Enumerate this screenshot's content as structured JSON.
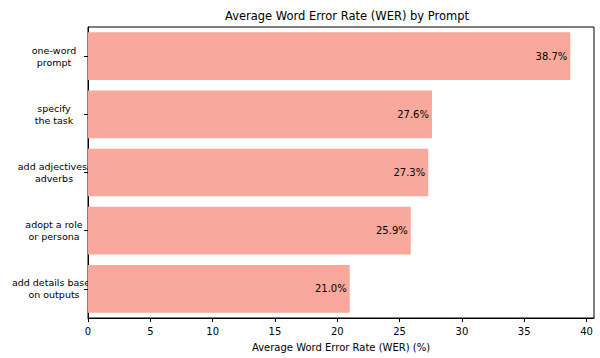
{
  "chart_data": {
    "type": "bar",
    "orientation": "horizontal",
    "title": "Average Word Error Rate (WER) by Prompt",
    "x_label": "Average Word Error Rate (WER) (%)",
    "categories": [
      "one-word\nprompt",
      "specify\nthe task",
      "add adjectives/\nadverbs",
      "adopt a role\nor persona",
      "add details based\non outputs"
    ],
    "values": [
      38.7,
      27.6,
      27.3,
      25.9,
      21.0
    ],
    "value_labels": [
      "38.7%",
      "27.6%",
      "27.3%",
      "25.9%",
      "21.0%"
    ],
    "data_labels": true,
    "color": "#f9a99c",
    "xlim": [
      0,
      40.6
    ],
    "xticks": [
      0,
      5,
      10,
      15,
      20,
      25,
      30,
      35,
      40
    ],
    "grid": false
  }
}
